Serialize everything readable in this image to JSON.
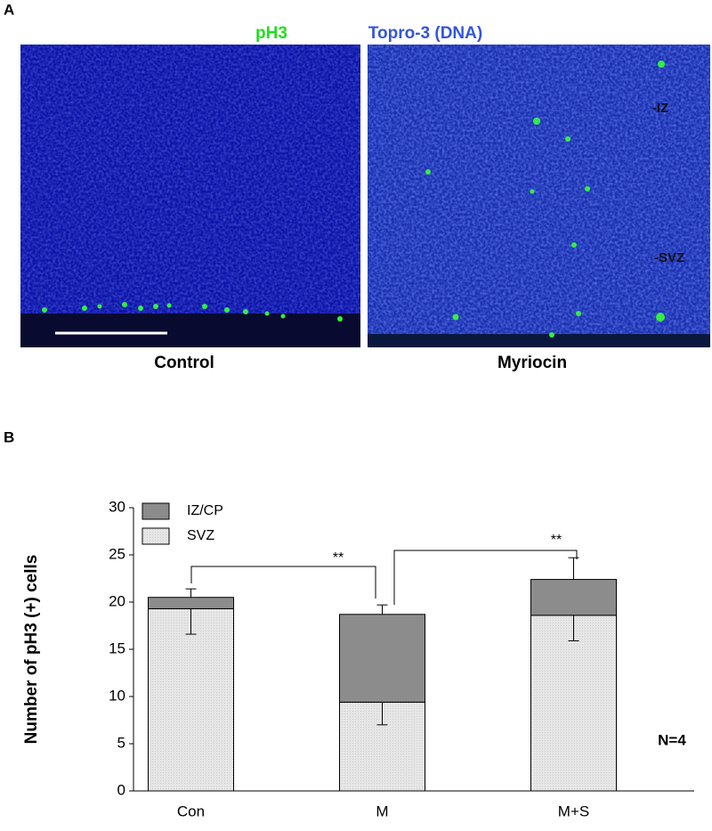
{
  "panel_a": {
    "label": "A",
    "legend": [
      "pH3",
      "Topro-3 (DNA)"
    ],
    "images": [
      "Control",
      "Myriocin"
    ],
    "region_labels": [
      "-IZ",
      "-SVZ"
    ]
  },
  "chart_data": {
    "type": "stacked_bar",
    "panel_label": "B",
    "y_label": "Number of pH3 (+) cells",
    "categories": [
      "Con",
      "M",
      "M+S"
    ],
    "series": [
      {
        "name": "SVZ",
        "color": "#e6e6e6",
        "values": [
          19.3,
          9.4,
          18.6
        ],
        "errors": [
          2.7,
          2.4,
          2.7
        ]
      },
      {
        "name": "IZ/CP",
        "color": "#8c8c8c",
        "values": [
          1.2,
          9.3,
          3.8
        ],
        "errors": [
          0.9,
          1.0,
          2.3
        ]
      }
    ],
    "ylim": [
      0,
      30
    ],
    "yticks": [
      0,
      5,
      10,
      15,
      20,
      25,
      30
    ],
    "annotations": [
      "**",
      "**",
      "N=4"
    ]
  }
}
